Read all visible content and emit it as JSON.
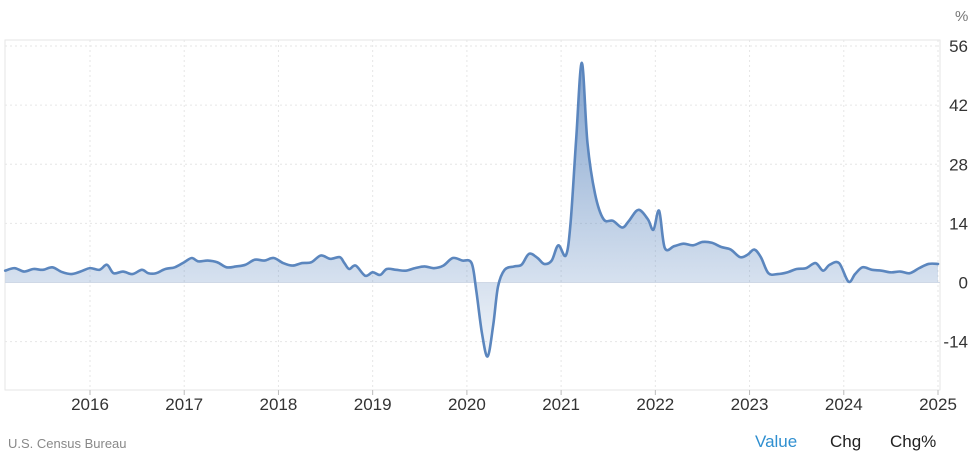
{
  "chart_data": {
    "type": "area",
    "unit": "%",
    "y_ticks": [
      56,
      42,
      28,
      14,
      0,
      -14
    ],
    "x_ticks": [
      "2016",
      "2017",
      "2018",
      "2019",
      "2020",
      "2021",
      "2022",
      "2023",
      "2024",
      "2025"
    ],
    "ylim": [
      -26,
      56
    ],
    "xlim": [
      2015.1,
      2025.0
    ],
    "grid": true,
    "series": [
      {
        "color": "#5b86be",
        "points": [
          [
            2015.1,
            2.8
          ],
          [
            2015.2,
            3.4
          ],
          [
            2015.3,
            2.6
          ],
          [
            2015.4,
            3.2
          ],
          [
            2015.5,
            3.0
          ],
          [
            2015.6,
            3.6
          ],
          [
            2015.7,
            2.5
          ],
          [
            2015.8,
            2.0
          ],
          [
            2015.9,
            2.6
          ],
          [
            2016.0,
            3.4
          ],
          [
            2016.1,
            3.0
          ],
          [
            2016.18,
            4.2
          ],
          [
            2016.25,
            2.2
          ],
          [
            2016.35,
            2.6
          ],
          [
            2016.45,
            2.0
          ],
          [
            2016.55,
            3.0
          ],
          [
            2016.62,
            2.2
          ],
          [
            2016.7,
            2.2
          ],
          [
            2016.8,
            3.2
          ],
          [
            2016.9,
            3.6
          ],
          [
            2017.0,
            4.8
          ],
          [
            2017.08,
            5.8
          ],
          [
            2017.15,
            5.0
          ],
          [
            2017.25,
            5.2
          ],
          [
            2017.35,
            4.8
          ],
          [
            2017.45,
            3.6
          ],
          [
            2017.55,
            3.8
          ],
          [
            2017.65,
            4.2
          ],
          [
            2017.75,
            5.4
          ],
          [
            2017.85,
            5.2
          ],
          [
            2017.95,
            5.8
          ],
          [
            2018.05,
            4.6
          ],
          [
            2018.15,
            4.0
          ],
          [
            2018.25,
            4.6
          ],
          [
            2018.35,
            4.8
          ],
          [
            2018.45,
            6.4
          ],
          [
            2018.55,
            5.6
          ],
          [
            2018.65,
            6.0
          ],
          [
            2018.7,
            4.6
          ],
          [
            2018.75,
            3.2
          ],
          [
            2018.82,
            4.0
          ],
          [
            2018.92,
            1.6
          ],
          [
            2019.0,
            2.4
          ],
          [
            2019.08,
            1.8
          ],
          [
            2019.15,
            3.2
          ],
          [
            2019.25,
            3.0
          ],
          [
            2019.35,
            2.8
          ],
          [
            2019.45,
            3.4
          ],
          [
            2019.55,
            3.8
          ],
          [
            2019.65,
            3.4
          ],
          [
            2019.75,
            4.0
          ],
          [
            2019.85,
            5.8
          ],
          [
            2019.95,
            5.2
          ],
          [
            2020.05,
            4.6
          ],
          [
            2020.1,
            -2.0
          ],
          [
            2020.16,
            -12.0
          ],
          [
            2020.22,
            -17.5
          ],
          [
            2020.28,
            -10.0
          ],
          [
            2020.33,
            -1.0
          ],
          [
            2020.4,
            3.0
          ],
          [
            2020.5,
            3.8
          ],
          [
            2020.58,
            4.2
          ],
          [
            2020.66,
            6.8
          ],
          [
            2020.75,
            5.8
          ],
          [
            2020.82,
            4.4
          ],
          [
            2020.9,
            5.2
          ],
          [
            2020.97,
            8.8
          ],
          [
            2021.05,
            6.4
          ],
          [
            2021.1,
            14.0
          ],
          [
            2021.16,
            34.0
          ],
          [
            2021.22,
            52.0
          ],
          [
            2021.28,
            33.0
          ],
          [
            2021.36,
            21.0
          ],
          [
            2021.45,
            15.0
          ],
          [
            2021.55,
            14.6
          ],
          [
            2021.65,
            13.0
          ],
          [
            2021.72,
            14.6
          ],
          [
            2021.82,
            17.2
          ],
          [
            2021.92,
            15.0
          ],
          [
            2021.98,
            12.5
          ],
          [
            2022.04,
            17.0
          ],
          [
            2022.1,
            8.2
          ],
          [
            2022.2,
            8.6
          ],
          [
            2022.3,
            9.2
          ],
          [
            2022.4,
            8.8
          ],
          [
            2022.5,
            9.6
          ],
          [
            2022.6,
            9.4
          ],
          [
            2022.7,
            8.4
          ],
          [
            2022.8,
            7.8
          ],
          [
            2022.9,
            6.0
          ],
          [
            2022.98,
            6.6
          ],
          [
            2023.05,
            7.8
          ],
          [
            2023.12,
            6.0
          ],
          [
            2023.2,
            2.2
          ],
          [
            2023.3,
            2.0
          ],
          [
            2023.4,
            2.4
          ],
          [
            2023.5,
            3.2
          ],
          [
            2023.6,
            3.4
          ],
          [
            2023.7,
            4.6
          ],
          [
            2023.78,
            2.8
          ],
          [
            2023.85,
            4.2
          ],
          [
            2023.95,
            4.6
          ],
          [
            2024.05,
            0.2
          ],
          [
            2024.12,
            2.0
          ],
          [
            2024.2,
            3.6
          ],
          [
            2024.3,
            3.0
          ],
          [
            2024.4,
            2.8
          ],
          [
            2024.5,
            2.4
          ],
          [
            2024.6,
            2.6
          ],
          [
            2024.7,
            2.2
          ],
          [
            2024.8,
            3.4
          ],
          [
            2024.9,
            4.4
          ],
          [
            2025.0,
            4.4
          ]
        ]
      }
    ]
  },
  "footer": {
    "source": "U.S. Census Bureau",
    "tabs": [
      "Value",
      "Chg",
      "Chg%"
    ],
    "active_tab": "Value"
  },
  "colors": {
    "line": "#5b86be",
    "active_tab": "#2f8fd0"
  }
}
